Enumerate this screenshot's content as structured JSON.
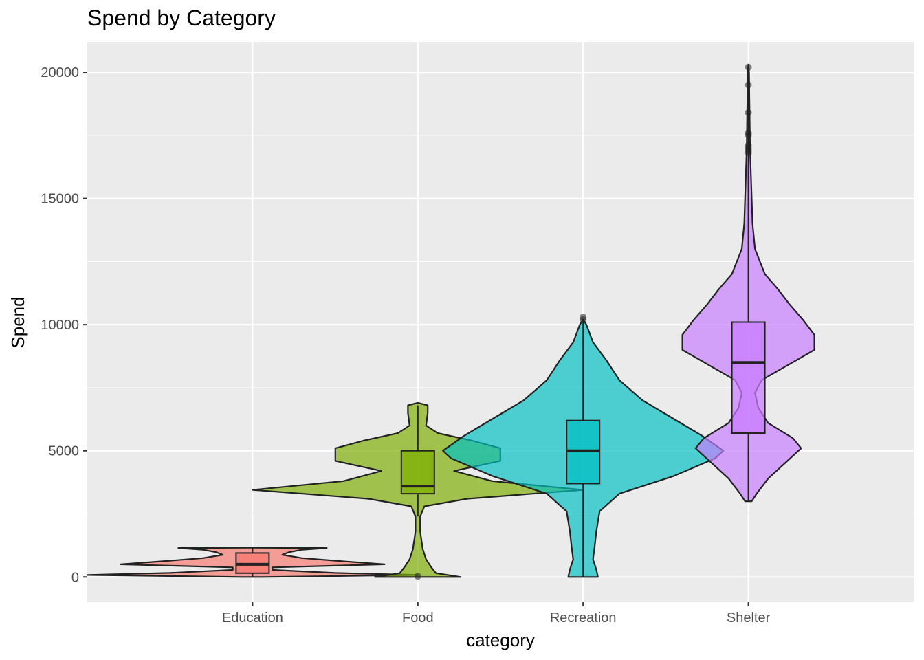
{
  "chart_data": {
    "type": "violin",
    "title": "Spend by Category",
    "xlabel": "category",
    "ylabel": "Spend",
    "ylim": [
      -1000,
      21200
    ],
    "yticks": [
      0,
      5000,
      10000,
      15000,
      20000
    ],
    "grid": true,
    "legend": "none",
    "categories": [
      "Education",
      "Food",
      "Recreation",
      "Shelter"
    ],
    "series": [
      {
        "category": "Education",
        "color": "#F8766D",
        "box": {
          "q1": 150,
          "median": 500,
          "q3": 950,
          "whisker_low": 0,
          "whisker_high": 1150
        },
        "outliers": [],
        "density": [
          [
            0,
            0.06
          ],
          [
            80,
            1.0
          ],
          [
            160,
            0.5
          ],
          [
            280,
            0.12
          ],
          [
            380,
            0.12
          ],
          [
            500,
            0.8
          ],
          [
            620,
            0.55
          ],
          [
            750,
            0.3
          ],
          [
            880,
            0.18
          ],
          [
            980,
            0.22
          ],
          [
            1080,
            0.3
          ],
          [
            1150,
            0.45
          ],
          [
            1160,
            0
          ]
        ]
      },
      {
        "category": "Food",
        "color": "#7CAE00",
        "box": {
          "q1": 3300,
          "median": 3600,
          "q3": 5000,
          "whisker_low": 2400,
          "whisker_high": 6800
        },
        "outliers": [
          30
        ],
        "density": [
          [
            0,
            0.26
          ],
          [
            150,
            0.11
          ],
          [
            400,
            0.08
          ],
          [
            700,
            0.05
          ],
          [
            1100,
            0.03
          ],
          [
            1800,
            0.014
          ],
          [
            2400,
            0.014
          ],
          [
            2800,
            0.04
          ],
          [
            3100,
            0.3
          ],
          [
            3450,
            1.0
          ],
          [
            3800,
            0.45
          ],
          [
            4200,
            0.22
          ],
          [
            4600,
            0.5
          ],
          [
            5100,
            0.5
          ],
          [
            5400,
            0.33
          ],
          [
            5700,
            0.12
          ],
          [
            6000,
            0.05
          ],
          [
            6500,
            0.06
          ],
          [
            6800,
            0.06
          ],
          [
            6900,
            0
          ]
        ]
      },
      {
        "category": "Recreation",
        "color": "#00BFC4",
        "box": {
          "q1": 3700,
          "median": 5000,
          "q3": 6200,
          "whisker_low": 0,
          "whisker_high": 10200
        },
        "outliers": [
          10300,
          10200
        ],
        "density": [
          [
            0,
            0.09
          ],
          [
            300,
            0.08
          ],
          [
            700,
            0.06
          ],
          [
            1200,
            0.07
          ],
          [
            1800,
            0.08
          ],
          [
            2600,
            0.1
          ],
          [
            3300,
            0.22
          ],
          [
            4000,
            0.55
          ],
          [
            4700,
            0.8
          ],
          [
            5000,
            0.85
          ],
          [
            5600,
            0.72
          ],
          [
            6300,
            0.54
          ],
          [
            7000,
            0.36
          ],
          [
            7800,
            0.22
          ],
          [
            8600,
            0.14
          ],
          [
            9300,
            0.06
          ],
          [
            10000,
            0.02
          ],
          [
            10200,
            0
          ]
        ]
      },
      {
        "category": "Shelter",
        "color": "#C77CFF",
        "box": {
          "q1": 5700,
          "median": 8500,
          "q3": 10100,
          "whisker_low": 3000,
          "whisker_high": 20200
        },
        "outliers": [
          20200,
          19500,
          18400,
          17600,
          17500,
          17100,
          17000,
          16900,
          16800
        ],
        "density": [
          [
            3000,
            0.02
          ],
          [
            3300,
            0.05
          ],
          [
            3900,
            0.12
          ],
          [
            4500,
            0.22
          ],
          [
            5100,
            0.32
          ],
          [
            5500,
            0.27
          ],
          [
            6100,
            0.12
          ],
          [
            6700,
            0.06
          ],
          [
            7300,
            0.04
          ],
          [
            7800,
            0.08
          ],
          [
            8400,
            0.24
          ],
          [
            9000,
            0.4
          ],
          [
            9600,
            0.4
          ],
          [
            10200,
            0.33
          ],
          [
            10800,
            0.25
          ],
          [
            11400,
            0.18
          ],
          [
            12000,
            0.1
          ],
          [
            13000,
            0.04
          ],
          [
            14000,
            0.025
          ],
          [
            15000,
            0.02
          ],
          [
            16000,
            0.015
          ],
          [
            17000,
            0.01
          ],
          [
            18000,
            0.008
          ],
          [
            19000,
            0.006
          ],
          [
            20000,
            0.004
          ],
          [
            20300,
            0
          ]
        ]
      }
    ]
  }
}
